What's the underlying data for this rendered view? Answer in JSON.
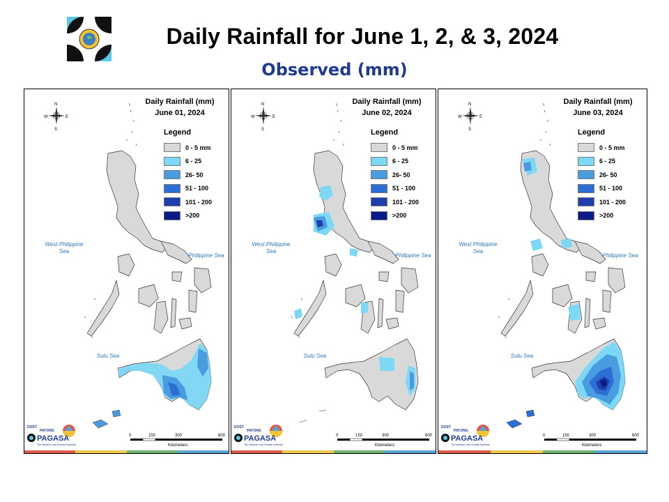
{
  "title": "Daily Rainfall for June 1, 2, & 3, 2024",
  "subtitle": "Observed (mm)",
  "legend": {
    "title": "Legend",
    "items": [
      {
        "label": "0 - 5 mm",
        "color": "#d9d9d9"
      },
      {
        "label": "6 - 25",
        "color": "#7dd8f5"
      },
      {
        "label": "26- 50",
        "color": "#4a9ce0"
      },
      {
        "label": "51 - 100",
        "color": "#2c6fd4"
      },
      {
        "label": "101 - 200",
        "color": "#1f3fae"
      },
      {
        "label": ">200",
        "color": "#0a1a87"
      }
    ]
  },
  "seas": {
    "west": "West Philippine Sea",
    "philippine": "Philippine Sea",
    "sulu": "Sulu Sea"
  },
  "compass": {
    "n": "N",
    "s": "S",
    "e": "E",
    "w": "W"
  },
  "scale": {
    "ticks": [
      "0",
      "150",
      "300",
      "600"
    ],
    "unit": "Kilometers"
  },
  "brand": {
    "top": "DOST",
    "name": "PAGASA",
    "tagline": "The Weather and Climate Authority",
    "sub": "PAYONG"
  },
  "panels": [
    {
      "heading": "Daily Rainfall (mm)",
      "date": "June 01, 2024"
    },
    {
      "heading": "Daily Rainfall (mm)",
      "date": "June 02, 2024"
    },
    {
      "heading": "Daily Rainfall (mm)",
      "date": "June 03, 2024"
    }
  ],
  "stripe_colors": [
    "#e05a4b",
    "#f2c94c",
    "#6fb36a",
    "#5aa3d8"
  ]
}
